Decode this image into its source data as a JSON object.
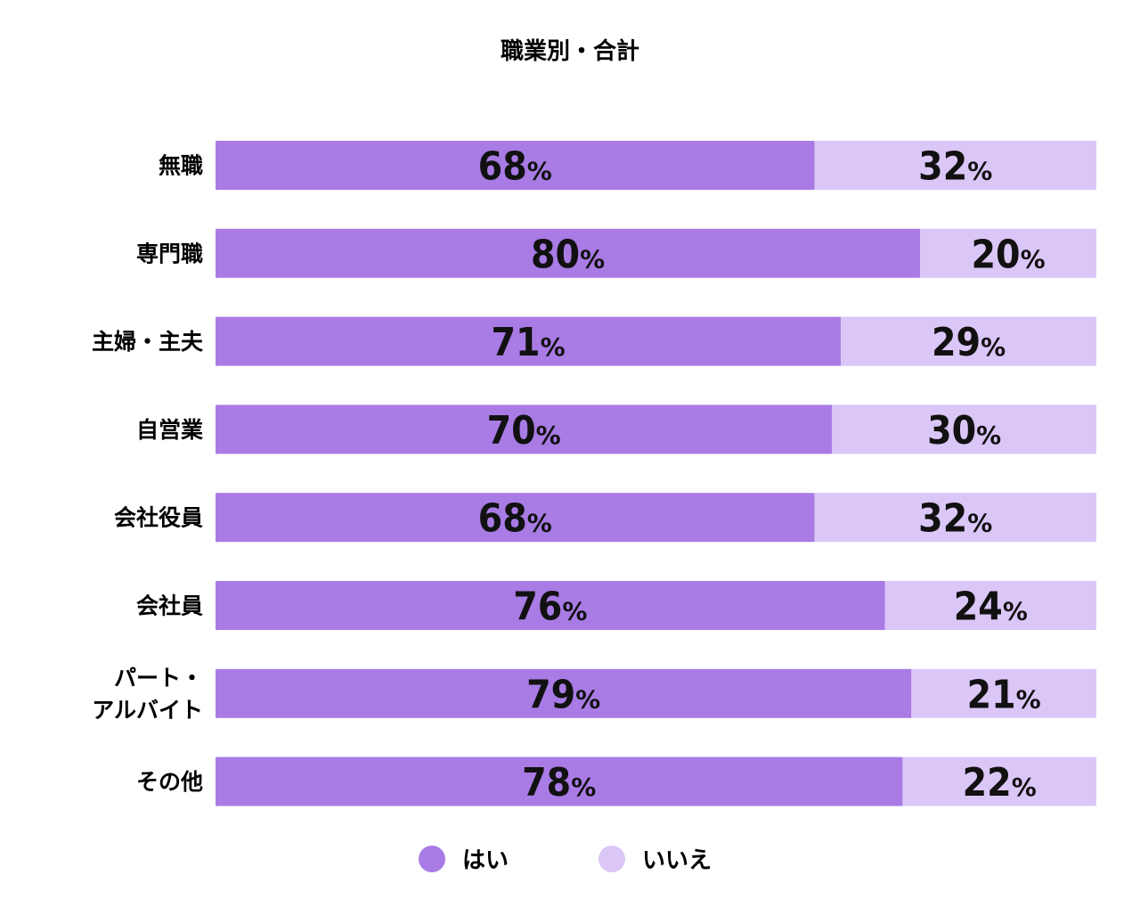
{
  "chart_data": {
    "type": "bar",
    "orientation": "horizontal",
    "stacked": true,
    "title": "職業別・合計",
    "categories": [
      "無職",
      "専門職",
      "主婦・主夫",
      "自営業",
      "会社役員",
      "会社員",
      "パート・アルバイト",
      "その他"
    ],
    "category_display": [
      [
        "無職"
      ],
      [
        "専門職"
      ],
      [
        "主婦・主夫"
      ],
      [
        "自営業"
      ],
      [
        "会社役員"
      ],
      [
        "会社員"
      ],
      [
        "パート・",
        "アルバイト"
      ],
      [
        "その他"
      ]
    ],
    "series": [
      {
        "name": "はい",
        "color": "#a97be5",
        "values": [
          68,
          80,
          71,
          70,
          68,
          76,
          79,
          78
        ]
      },
      {
        "name": "いいえ",
        "color": "#dbc6f8",
        "values": [
          32,
          20,
          29,
          30,
          32,
          24,
          21,
          22
        ]
      }
    ],
    "unit": "%",
    "xlim": [
      0,
      100
    ],
    "legend_position": "bottom-center",
    "grid": false
  }
}
